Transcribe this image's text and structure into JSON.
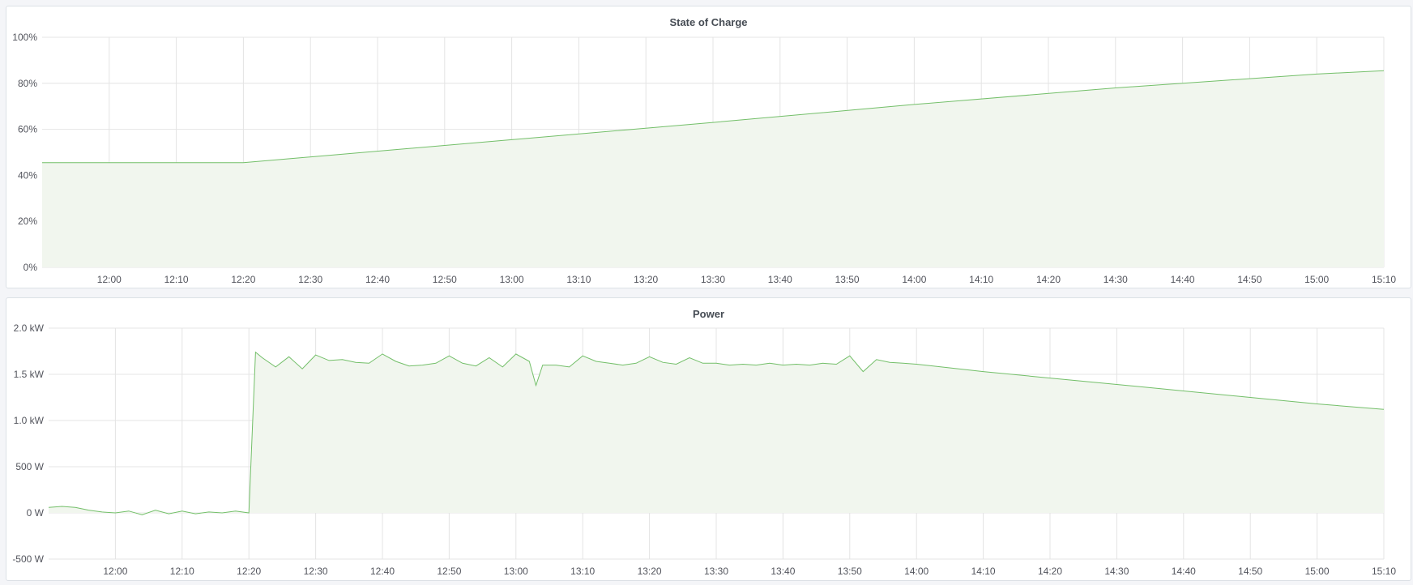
{
  "colors": {
    "line": "#73bf69",
    "fill": "#f1f6ee",
    "grid": "#e4e4e4",
    "background": "#f4f5f8"
  },
  "chart_data": [
    {
      "type": "area",
      "title": "State of Charge",
      "xlim": [
        "11:50",
        "15:10"
      ],
      "ylim": [
        0,
        100
      ],
      "grid": true,
      "x_ticks": [
        "12:00",
        "12:10",
        "12:20",
        "12:30",
        "12:40",
        "12:50",
        "13:00",
        "13:10",
        "13:20",
        "13:30",
        "13:40",
        "13:50",
        "14:00",
        "14:10",
        "14:20",
        "14:30",
        "14:40",
        "14:50",
        "15:00",
        "15:10"
      ],
      "y_ticks": [
        "0%",
        "20%",
        "40%",
        "60%",
        "80%",
        "100%"
      ],
      "y_tick_values": [
        0,
        20,
        40,
        60,
        80,
        100
      ],
      "series": [
        {
          "x": [
            "11:50",
            "12:00",
            "12:10",
            "12:20",
            "13:00",
            "13:30",
            "14:00",
            "14:30",
            "15:00",
            "15:10"
          ],
          "y": [
            45.5,
            45.5,
            45.5,
            45.5,
            55.5,
            63,
            70.8,
            78,
            84,
            85.5
          ]
        }
      ]
    },
    {
      "type": "area",
      "title": "Power",
      "xlim": [
        "11:50",
        "15:10"
      ],
      "ylim": [
        -500,
        2000
      ],
      "grid": true,
      "x_ticks": [
        "12:00",
        "12:10",
        "12:20",
        "12:30",
        "12:40",
        "12:50",
        "13:00",
        "13:10",
        "13:20",
        "13:30",
        "13:40",
        "13:50",
        "14:00",
        "14:10",
        "14:20",
        "14:30",
        "14:40",
        "14:50",
        "15:00",
        "15:10"
      ],
      "y_ticks": [
        "-500 W",
        "0 W",
        "500 W",
        "1.0 kW",
        "1.5 kW",
        "2.0 kW"
      ],
      "y_tick_values": [
        -500,
        0,
        500,
        1000,
        1500,
        2000
      ],
      "series": [
        {
          "x": [
            "11:50",
            "11:52",
            "11:54",
            "11:56",
            "11:58",
            "12:00",
            "12:02",
            "12:04",
            "12:06",
            "12:08",
            "12:10",
            "12:12",
            "12:14",
            "12:16",
            "12:18",
            "12:20",
            "12:21",
            "12:22",
            "12:24",
            "12:26",
            "12:28",
            "12:30",
            "12:32",
            "12:34",
            "12:36",
            "12:38",
            "12:40",
            "12:42",
            "12:44",
            "12:46",
            "12:48",
            "12:50",
            "12:52",
            "12:54",
            "12:56",
            "12:58",
            "13:00",
            "13:02",
            "13:03",
            "13:04",
            "13:06",
            "13:08",
            "13:10",
            "13:12",
            "13:14",
            "13:16",
            "13:18",
            "13:20",
            "13:22",
            "13:24",
            "13:26",
            "13:28",
            "13:30",
            "13:32",
            "13:34",
            "13:36",
            "13:38",
            "13:40",
            "13:42",
            "13:44",
            "13:46",
            "13:48",
            "13:50",
            "13:52",
            "13:54",
            "13:56",
            "13:58",
            "14:00",
            "14:10",
            "14:20",
            "14:30",
            "14:40",
            "14:50",
            "15:00",
            "15:10"
          ],
          "y": [
            60,
            70,
            60,
            30,
            10,
            0,
            20,
            -20,
            30,
            -10,
            20,
            -10,
            10,
            0,
            20,
            0,
            1740,
            1680,
            1580,
            1690,
            1560,
            1710,
            1650,
            1660,
            1630,
            1620,
            1720,
            1640,
            1590,
            1600,
            1620,
            1700,
            1620,
            1590,
            1680,
            1580,
            1720,
            1640,
            1380,
            1600,
            1600,
            1580,
            1700,
            1640,
            1620,
            1600,
            1620,
            1690,
            1630,
            1610,
            1680,
            1620,
            1620,
            1600,
            1610,
            1600,
            1620,
            1600,
            1610,
            1600,
            1620,
            1610,
            1700,
            1530,
            1660,
            1630,
            1620,
            1610,
            1530,
            1460,
            1390,
            1320,
            1250,
            1180,
            1120
          ]
        }
      ]
    }
  ]
}
